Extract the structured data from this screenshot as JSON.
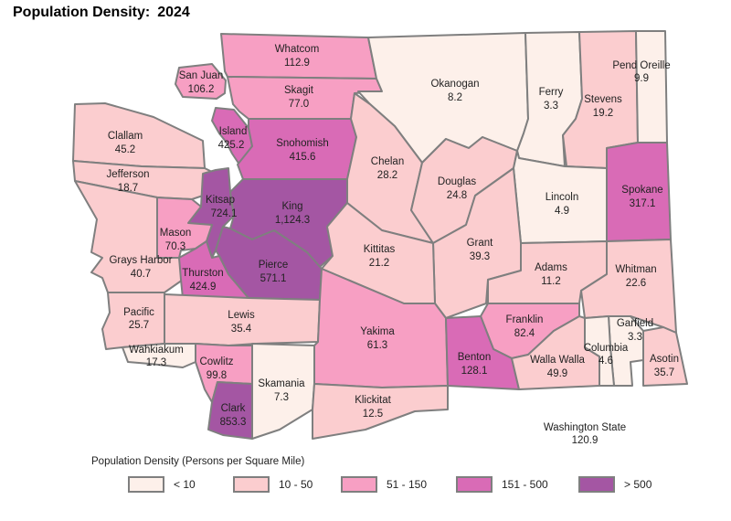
{
  "title": "Population Density:",
  "year": "2024",
  "colors": {
    "lt10": "#fdf0ea",
    "c10_50": "#fbcdcf",
    "c51_150": "#f79fc3",
    "c151_500": "#d96bb6",
    "gt500": "#a456a3"
  },
  "counties": {
    "whatcom": {
      "name": "Whatcom",
      "value": "112.9"
    },
    "sanjuan": {
      "name": "San Juan",
      "value": "106.2"
    },
    "skagit": {
      "name": "Skagit",
      "value": "77.0"
    },
    "okanogan": {
      "name": "Okanogan",
      "value": "8.2"
    },
    "ferry": {
      "name": "Ferry",
      "value": "3.3"
    },
    "stevens": {
      "name": "Stevens",
      "value": "19.2"
    },
    "pendoreille": {
      "name": "Pend Oreille",
      "value": "9.9"
    },
    "clallam": {
      "name": "Clallam",
      "value": "45.2"
    },
    "island": {
      "name": "Island",
      "value": "425.2"
    },
    "snohomish": {
      "name": "Snohomish",
      "value": "415.6"
    },
    "chelan": {
      "name": "Chelan",
      "value": "28.2"
    },
    "jefferson": {
      "name": "Jefferson",
      "value": "18.7"
    },
    "douglas": {
      "name": "Douglas",
      "value": "24.8"
    },
    "lincoln": {
      "name": "Lincoln",
      "value": "4.9"
    },
    "spokane": {
      "name": "Spokane",
      "value": "317.1"
    },
    "kitsap": {
      "name": "Kitsap",
      "value": "724.1"
    },
    "king": {
      "name": "King",
      "value": "1,124.3"
    },
    "mason": {
      "name": "Mason",
      "value": "70.3"
    },
    "grant": {
      "name": "Grant",
      "value": "39.3"
    },
    "graysharbor": {
      "name": "Grays Harbor",
      "value": "40.7"
    },
    "kittitas": {
      "name": "Kittitas",
      "value": "21.2"
    },
    "adams": {
      "name": "Adams",
      "value": "11.2"
    },
    "whitman": {
      "name": "Whitman",
      "value": "22.6"
    },
    "thurston": {
      "name": "Thurston",
      "value": "424.9"
    },
    "pierce": {
      "name": "Pierce",
      "value": "571.1"
    },
    "pacific": {
      "name": "Pacific",
      "value": "25.7"
    },
    "lewis": {
      "name": "Lewis",
      "value": "35.4"
    },
    "yakima": {
      "name": "Yakima",
      "value": "61.3"
    },
    "franklin": {
      "name": "Franklin",
      "value": "82.4"
    },
    "garfield": {
      "name": "Garfield",
      "value": "3.3"
    },
    "wahkiakum": {
      "name": "Wahkiakum",
      "value": "17.3"
    },
    "cowlitz": {
      "name": "Cowlitz",
      "value": "99.8"
    },
    "benton": {
      "name": "Benton",
      "value": "128.1"
    },
    "wallawalla": {
      "name": "Walla Walla",
      "value": "49.9"
    },
    "columbia": {
      "name": "Columbia",
      "value": "4.6"
    },
    "asotin": {
      "name": "Asotin",
      "value": "35.7"
    },
    "skamania": {
      "name": "Skamania",
      "value": "7.3"
    },
    "klickitat": {
      "name": "Klickitat",
      "value": "12.5"
    },
    "clark": {
      "name": "Clark",
      "value": "853.3"
    }
  },
  "state_total": {
    "name": "Washington State",
    "value": "120.9"
  },
  "legend": {
    "title": "Population Density (Persons per Square Mile)",
    "items": [
      {
        "label": "< 10",
        "color": "#fdf0ea"
      },
      {
        "label": "10 - 50",
        "color": "#fbcdcf"
      },
      {
        "label": "51 - 150",
        "color": "#f79fc3"
      },
      {
        "label": "151 - 500",
        "color": "#d96bb6"
      },
      {
        "label": "> 500",
        "color": "#a456a3"
      }
    ]
  }
}
